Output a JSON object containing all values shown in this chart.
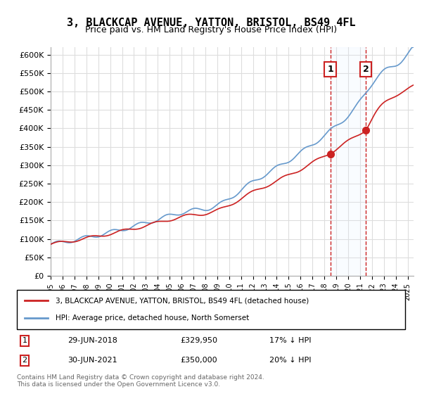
{
  "title": "3, BLACKCAP AVENUE, YATTON, BRISTOL, BS49 4FL",
  "subtitle": "Price paid vs. HM Land Registry's House Price Index (HPI)",
  "legend_line1": "3, BLACKCAP AVENUE, YATTON, BRISTOL, BS49 4FL (detached house)",
  "legend_line2": "HPI: Average price, detached house, North Somerset",
  "transaction1_label": "1",
  "transaction1_date": "29-JUN-2018",
  "transaction1_price": "£329,950",
  "transaction1_hpi": "17% ↓ HPI",
  "transaction2_label": "2",
  "transaction2_date": "30-JUN-2021",
  "transaction2_price": "£350,000",
  "transaction2_hpi": "20% ↓ HPI",
  "footer": "Contains HM Land Registry data © Crown copyright and database right 2024.\nThis data is licensed under the Open Government Licence v3.0.",
  "hpi_color": "#6699cc",
  "price_color": "#cc2222",
  "vline_color": "#cc2222",
  "vline_style": "--",
  "marker_color": "#cc2222",
  "background_color": "#ffffff",
  "grid_color": "#dddddd",
  "label_box_color": "#cc2222",
  "highlight_color": "#ddeeff",
  "ylim": [
    0,
    620000
  ],
  "yticks": [
    0,
    50000,
    100000,
    150000,
    200000,
    250000,
    300000,
    350000,
    400000,
    450000,
    500000,
    550000,
    600000
  ],
  "year_start": 1995,
  "year_end": 2025,
  "transaction1_year": 2018.5,
  "transaction2_year": 2021.5
}
